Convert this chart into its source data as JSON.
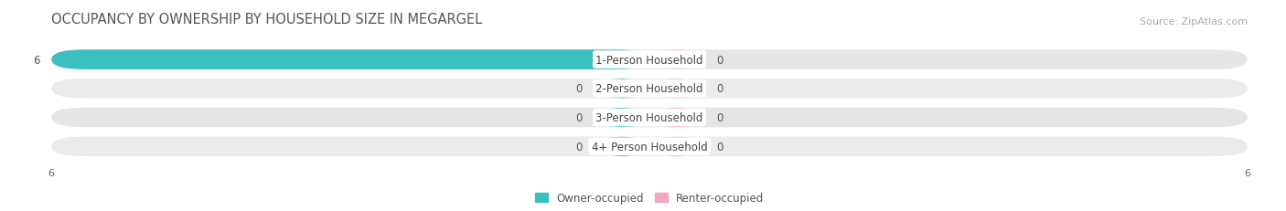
{
  "title": "OCCUPANCY BY OWNERSHIP BY HOUSEHOLD SIZE IN MEGARGEL",
  "source": "Source: ZipAtlas.com",
  "categories": [
    "1-Person Household",
    "2-Person Household",
    "3-Person Household",
    "4+ Person Household"
  ],
  "owner_values": [
    6,
    0,
    0,
    0
  ],
  "renter_values": [
    0,
    0,
    0,
    0
  ],
  "owner_color": "#3bbfbf",
  "renter_color": "#f4a7c0",
  "xlim": [
    -6,
    6
  ],
  "bar_bg_color": "#e5e5e5",
  "bar_bg_color2": "#ebebeb",
  "title_fontsize": 10.5,
  "source_fontsize": 8,
  "label_fontsize": 8.5,
  "tick_fontsize": 8,
  "legend_owner": "Owner-occupied",
  "legend_renter": "Renter-occupied",
  "min_bar_width": 0.55,
  "bar_height": 0.68,
  "row_sep": 1.0
}
